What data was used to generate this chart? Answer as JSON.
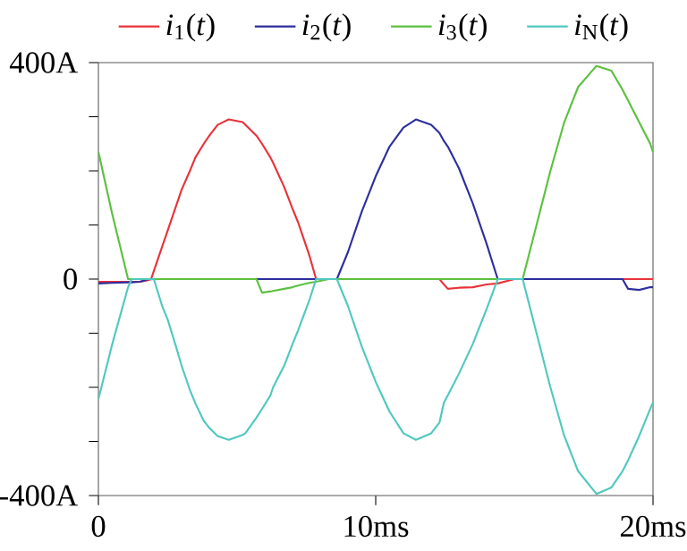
{
  "chart_data": {
    "type": "line",
    "x": [
      0,
      0.5,
      1.07,
      1.2,
      1.5,
      1.8,
      1.9,
      2.0,
      2.3,
      2.5,
      2.8,
      3.0,
      3.3,
      3.5,
      3.8,
      4.0,
      4.3,
      4.7,
      5.2,
      5.3,
      5.7,
      5.9,
      6.2,
      6.3,
      6.7,
      7.0,
      7.2,
      7.6,
      7.85,
      8.3,
      8.6,
      9.0,
      9.5,
      10.0,
      10.5,
      11.0,
      11.45,
      12.0,
      12.3,
      12.46,
      12.6,
      13.0,
      13.5,
      14.0,
      14.4,
      15.0,
      15.3,
      15.8,
      16.3,
      16.8,
      17.3,
      17.96,
      18.5,
      18.9,
      19.1,
      19.5,
      19.9,
      20
    ],
    "series": [
      {
        "name": "*i*$_{1}$(*t*)",
        "color": "#e8333a",
        "values": [
          -5,
          -5,
          -5,
          -5,
          -5,
          -2,
          0,
          15,
          60,
          90,
          135,
          165,
          200,
          225,
          250,
          265,
          285,
          295,
          290,
          285,
          265,
          250,
          225,
          215,
          170,
          130,
          105,
          45,
          0,
          0,
          0,
          0,
          0,
          0,
          0,
          0,
          0,
          0,
          0,
          -10,
          -18,
          -16,
          -15,
          -10,
          -8,
          0,
          0,
          0,
          0,
          0,
          0,
          0,
          0,
          0,
          0,
          0,
          0,
          0
        ]
      },
      {
        "name": "*i*$_{2}$(*t*)",
        "color": "#2e2e9e",
        "values": [
          -8,
          -7,
          -6,
          -6,
          -5,
          0,
          0,
          0,
          0,
          0,
          0,
          0,
          0,
          0,
          0,
          0,
          0,
          0,
          0,
          0,
          0,
          0,
          0,
          0,
          0,
          0,
          0,
          0,
          0,
          0,
          0,
          50,
          125,
          190,
          245,
          280,
          295,
          285,
          270,
          255,
          245,
          205,
          140,
          65,
          0,
          0,
          0,
          0,
          0,
          0,
          0,
          0,
          0,
          0,
          -18,
          -20,
          -15,
          -15
        ]
      },
      {
        "name": "*i*$_{3}$(*t*)",
        "color": "#5cc040",
        "values": [
          235,
          120,
          0,
          0,
          0,
          0,
          0,
          0,
          0,
          0,
          0,
          0,
          0,
          0,
          0,
          0,
          0,
          0,
          0,
          0,
          0,
          -25,
          -23,
          -22,
          -18,
          -15,
          -12,
          -7,
          -5,
          0,
          0,
          0,
          0,
          0,
          0,
          0,
          0,
          0,
          0,
          0,
          0,
          0,
          0,
          0,
          0,
          0,
          0,
          100,
          200,
          290,
          355,
          394,
          385,
          350,
          330,
          290,
          250,
          235
        ]
      },
      {
        "name": "*i*$_{N}$(*t*)",
        "color": "#50c8c0",
        "values": [
          -222,
          -120,
          -15,
          0,
          0,
          0,
          0,
          0,
          -50,
          -75,
          -125,
          -160,
          -205,
          -230,
          -262,
          -275,
          -290,
          -297,
          -288,
          -285,
          -256,
          -240,
          -215,
          -200,
          -160,
          -120,
          -95,
          -40,
          0,
          0,
          0,
          -50,
          -125,
          -190,
          -245,
          -285,
          -297,
          -285,
          -265,
          -228,
          -215,
          -175,
          -120,
          -55,
          0,
          0,
          0,
          -100,
          -200,
          -290,
          -355,
          -397,
          -385,
          -355,
          -335,
          -290,
          -240,
          -228
        ]
      }
    ],
    "xlim": [
      0,
      20
    ],
    "xticks": [
      0,
      {
        "value": 10,
        "label": "10ms"
      },
      {
        "value": 20,
        "label": "20ms"
      }
    ],
    "ylim": [
      -400,
      400
    ],
    "yticks": [
      {
        "value": -400,
        "label": "-400A"
      },
      {
        "value": -300,
        "label": null
      },
      {
        "value": -200,
        "label": null
      },
      {
        "value": -100,
        "label": null
      },
      0,
      {
        "value": 100,
        "label": null
      },
      {
        "value": 200,
        "label": null
      },
      {
        "value": 300,
        "label": null
      },
      {
        "value": 400,
        "label": "400A"
      }
    ],
    "legend": "top",
    "grid": false,
    "marker": "none",
    "line_style": "solid"
  }
}
